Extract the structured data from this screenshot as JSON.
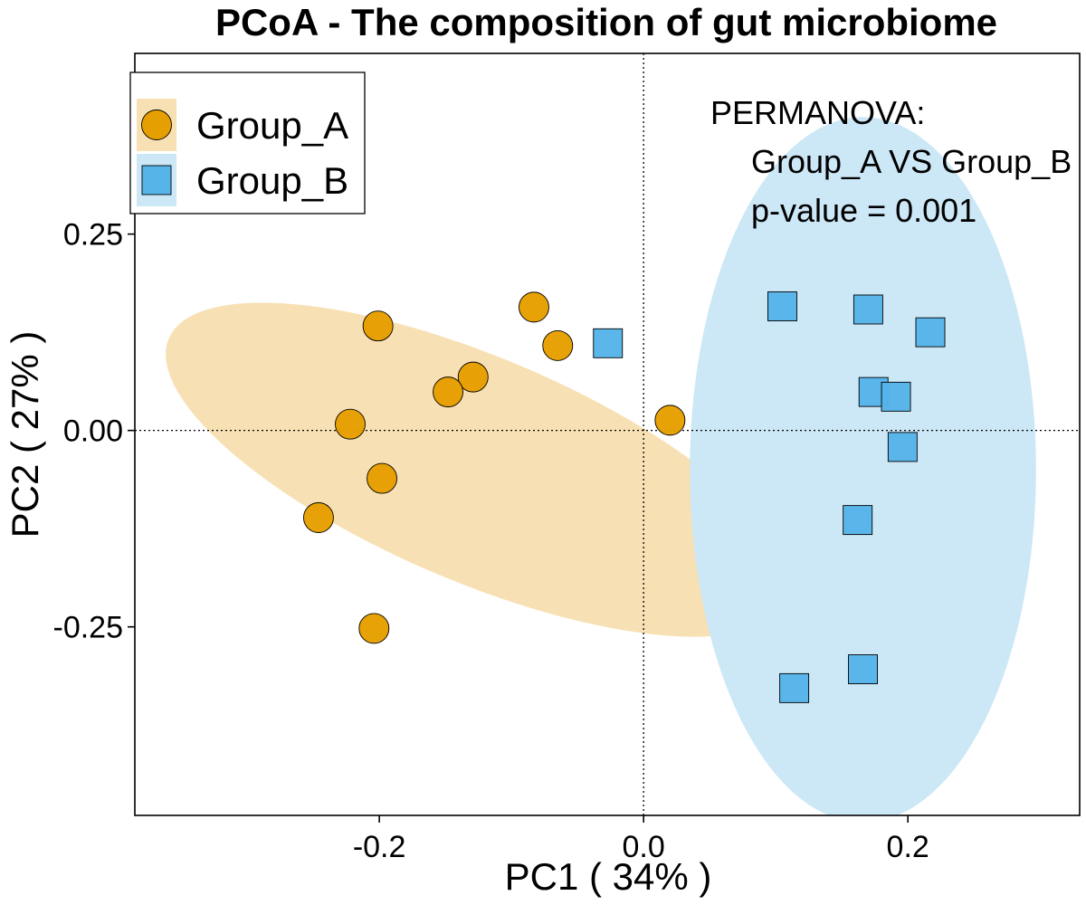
{
  "chart_data": {
    "type": "scatter",
    "title": "PCoA - The composition of gut microbiome",
    "xlabel": "PC1 ( 34% )",
    "ylabel": "PC2 ( 27% )",
    "xlim": [
      -0.385,
      0.33
    ],
    "ylim": [
      -0.49,
      0.48
    ],
    "xticks": [
      -0.2,
      0.0,
      0.2
    ],
    "xtick_labels": [
      "-0.2",
      "0.0",
      "0.2"
    ],
    "yticks": [
      0.25,
      0.0,
      -0.25
    ],
    "ytick_labels": [
      "0.25",
      "0.00",
      "-0.25"
    ],
    "grid": false,
    "reference_lines": {
      "x": 0.0,
      "y": 0.0,
      "style": "dotted"
    },
    "legend_position": "top-left",
    "series": [
      {
        "name": "Group_A",
        "marker": "circle",
        "color": "#E69F00",
        "fill_ellipse_color": "#F7E0B3",
        "points": [
          {
            "x": -0.083,
            "y": 0.157
          },
          {
            "x": -0.201,
            "y": 0.133
          },
          {
            "x": -0.065,
            "y": 0.108
          },
          {
            "x": -0.129,
            "y": 0.068
          },
          {
            "x": -0.148,
            "y": 0.049
          },
          {
            "x": -0.222,
            "y": 0.008
          },
          {
            "x": 0.02,
            "y": 0.013
          },
          {
            "x": -0.198,
            "y": -0.061
          },
          {
            "x": -0.246,
            "y": -0.111
          },
          {
            "x": -0.204,
            "y": -0.252
          }
        ]
      },
      {
        "name": "Group_B",
        "marker": "square",
        "color": "#56B4E9",
        "fill_ellipse_color": "#CCE7F6",
        "points": [
          {
            "x": 0.105,
            "y": 0.158
          },
          {
            "x": 0.17,
            "y": 0.154
          },
          {
            "x": 0.217,
            "y": 0.125
          },
          {
            "x": -0.027,
            "y": 0.111
          },
          {
            "x": 0.174,
            "y": 0.049
          },
          {
            "x": 0.191,
            "y": 0.043
          },
          {
            "x": 0.196,
            "y": -0.021
          },
          {
            "x": 0.162,
            "y": -0.114
          },
          {
            "x": 0.166,
            "y": -0.304
          },
          {
            "x": 0.114,
            "y": -0.328
          }
        ]
      }
    ],
    "ellipses": [
      {
        "series": "Group_A",
        "cx": -0.125,
        "cy": -0.05,
        "rx": 0.293,
        "ry": 0.124,
        "angle_deg": -40.6
      },
      {
        "series": "Group_B",
        "cx": 0.166,
        "cy": -0.05,
        "rx": 0.131,
        "ry": 0.449,
        "angle_deg": 0
      }
    ],
    "annotation": {
      "line1": "PERMANOVA:",
      "line2": "Group_A VS Group_B",
      "line3": "p-value = 0.001"
    }
  }
}
